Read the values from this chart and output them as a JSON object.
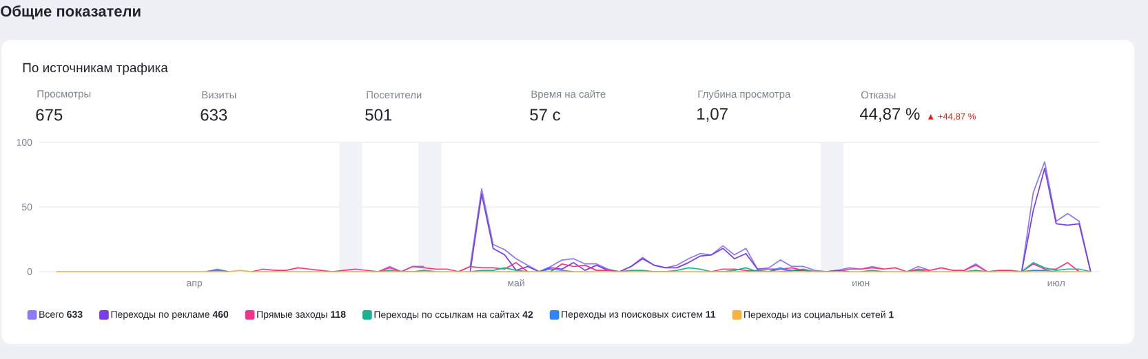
{
  "chart_data": [
    {
      "type": "other",
      "title": "Общие показатели",
      "annotations": [
        "Просмотры",
        "675",
        "Визиты",
        "633",
        "Посетители",
        "501",
        "Время на сайте",
        "57 с",
        "Глубина просмотра",
        "1,07",
        "Отказы",
        "44,87 %",
        "▲ +44,87 %"
      ]
    },
    {
      "type": "line",
      "title": "По источникам трафика",
      "categories": [
        null,
        null,
        null,
        null,
        null,
        null,
        null,
        null,
        null,
        null,
        null,
        null,
        "апр",
        null,
        null,
        null,
        null,
        null,
        null,
        null,
        null,
        null,
        null,
        null,
        null,
        null,
        null,
        null,
        null,
        null,
        null,
        null,
        null,
        null,
        null,
        null,
        null,
        null,
        null,
        null,
        "май",
        null,
        null,
        null,
        null,
        null,
        null,
        null,
        null,
        null,
        null,
        null,
        null,
        null,
        null,
        null,
        null,
        null,
        null,
        null,
        null,
        null,
        null,
        null,
        null,
        null,
        null,
        null,
        null,
        null,
        "июн",
        null,
        null,
        null,
        null,
        null,
        null,
        null,
        null,
        null,
        null,
        null,
        null,
        null,
        null,
        null,
        null,
        "июл",
        null,
        null,
        null
      ],
      "ylim": [
        0,
        100
      ],
      "yticks": [
        0,
        50,
        100
      ],
      "grid": "y",
      "legend": "bottom",
      "series": [
        {
          "name": "Всего **633**",
          "color": "#8b7cf6",
          "values": [
            null,
            null,
            null,
            null,
            null,
            null,
            null,
            null,
            null,
            null,
            null,
            null,
            null,
            0,
            2,
            0,
            null,
            null,
            null,
            null,
            null,
            null,
            null,
            null,
            null,
            null,
            null,
            null,
            0,
            4,
            0,
            4,
            4,
            null,
            null,
            0,
            4,
            64,
            21,
            17,
            10,
            5,
            0,
            4,
            9,
            10,
            6,
            6,
            2,
            0,
            4,
            11,
            5,
            3,
            5,
            10,
            14,
            13,
            20,
            13,
            18,
            2,
            3,
            9,
            4,
            4,
            1,
            0,
            1,
            3,
            2,
            4,
            2,
            null,
            0,
            4,
            1,
            null,
            null,
            1,
            6,
            0,
            null,
            null,
            0,
            61,
            85,
            39,
            45,
            39,
            0
          ]
        },
        {
          "name": "Переходы по рекламе **460**",
          "color": "#7a3de8",
          "values": [
            null,
            null,
            null,
            null,
            null,
            null,
            null,
            null,
            null,
            null,
            null,
            null,
            null,
            null,
            null,
            null,
            null,
            null,
            null,
            null,
            null,
            null,
            null,
            null,
            null,
            null,
            null,
            null,
            null,
            null,
            null,
            null,
            null,
            null,
            null,
            null,
            0,
            60,
            18,
            13,
            1,
            4,
            0,
            3,
            2,
            7,
            1,
            5,
            1,
            0,
            4,
            10,
            5,
            3,
            3,
            7,
            12,
            13,
            18,
            10,
            14,
            2,
            2,
            2,
            1,
            1,
            0,
            0,
            1,
            0,
            null,
            null,
            null,
            null,
            null,
            null,
            null,
            null,
            null,
            null,
            null,
            null,
            null,
            null,
            0,
            47,
            80,
            37,
            36,
            37,
            0
          ]
        },
        {
          "name": "Прямые заходы **118**",
          "color": "#f2358c",
          "values": [
            null,
            null,
            null,
            null,
            null,
            null,
            null,
            null,
            null,
            null,
            null,
            null,
            null,
            null,
            null,
            null,
            null,
            0,
            2,
            1,
            1,
            3,
            2,
            1,
            0,
            1,
            2,
            1,
            0,
            3,
            0,
            4,
            3,
            2,
            2,
            0,
            4,
            3,
            3,
            2,
            7,
            0,
            null,
            0,
            6,
            4,
            5,
            1,
            1,
            0,
            null,
            null,
            null,
            null,
            null,
            null,
            null,
            0,
            2,
            2,
            1,
            0,
            0,
            2,
            3,
            1,
            0,
            null,
            0,
            2,
            2,
            3,
            2,
            3,
            0,
            2,
            1,
            3,
            1,
            1,
            5,
            0,
            1,
            1,
            0,
            6,
            2,
            2,
            7,
            0,
            null
          ]
        },
        {
          "name": "Переходы по ссылкам на сайтах **42**",
          "color": "#1ab394",
          "values": [
            null,
            null,
            null,
            null,
            null,
            null,
            null,
            null,
            null,
            null,
            null,
            null,
            null,
            null,
            null,
            null,
            null,
            null,
            null,
            null,
            null,
            null,
            null,
            null,
            null,
            null,
            null,
            null,
            0,
            1,
            0,
            0,
            1,
            0,
            null,
            null,
            0,
            1,
            1,
            3,
            1,
            0,
            null,
            null,
            null,
            null,
            null,
            null,
            null,
            0,
            1,
            1,
            0,
            0,
            1,
            3,
            2,
            0,
            0,
            1,
            3,
            0,
            null,
            0,
            1,
            2,
            0,
            null,
            null,
            null,
            0,
            1,
            0,
            null,
            0,
            1,
            0,
            null,
            null,
            0,
            1,
            0,
            null,
            null,
            0,
            7,
            3,
            1,
            2,
            2,
            0
          ]
        },
        {
          "name": "Переходы из поисковых систем **11**",
          "color": "#2f86f6",
          "values": [
            null,
            null,
            null,
            null,
            null,
            null,
            null,
            null,
            null,
            null,
            null,
            null,
            null,
            0,
            1,
            0,
            null,
            null,
            null,
            null,
            null,
            null,
            null,
            null,
            null,
            null,
            null,
            null,
            null,
            null,
            null,
            null,
            null,
            null,
            null,
            null,
            null,
            null,
            null,
            null,
            null,
            null,
            0,
            2,
            1,
            0,
            null,
            null,
            null,
            null,
            null,
            null,
            null,
            null,
            null,
            null,
            null,
            null,
            null,
            null,
            0,
            1,
            0,
            3,
            0,
            null,
            null,
            null,
            null,
            null,
            null,
            null,
            null,
            null,
            null,
            null,
            null,
            null,
            null,
            null,
            null,
            null,
            null,
            null,
            0,
            1,
            1,
            0,
            null,
            null,
            null
          ]
        },
        {
          "name": "Переходы из социальных сетей **1**",
          "color": "#f5b342",
          "values": [
            0,
            0,
            0,
            0,
            0,
            0,
            0,
            0,
            0,
            0,
            0,
            0,
            0,
            0,
            0,
            0,
            1,
            0,
            0,
            0,
            0,
            0,
            0,
            0,
            0,
            0,
            0,
            0,
            0,
            0,
            0,
            0,
            0,
            0,
            0,
            0,
            0,
            0,
            0,
            0,
            0,
            0,
            0,
            0,
            0,
            0,
            0,
            0,
            0,
            0,
            0,
            0,
            0,
            0,
            0,
            0,
            0,
            0,
            0,
            0,
            0,
            0,
            0,
            0,
            0,
            0,
            0,
            0,
            0,
            0,
            0,
            0,
            0,
            0,
            0,
            0,
            0,
            0,
            0,
            0,
            0,
            0,
            0,
            0,
            0,
            0,
            0,
            0,
            0,
            0,
            0
          ]
        }
      ]
    }
  ]
}
